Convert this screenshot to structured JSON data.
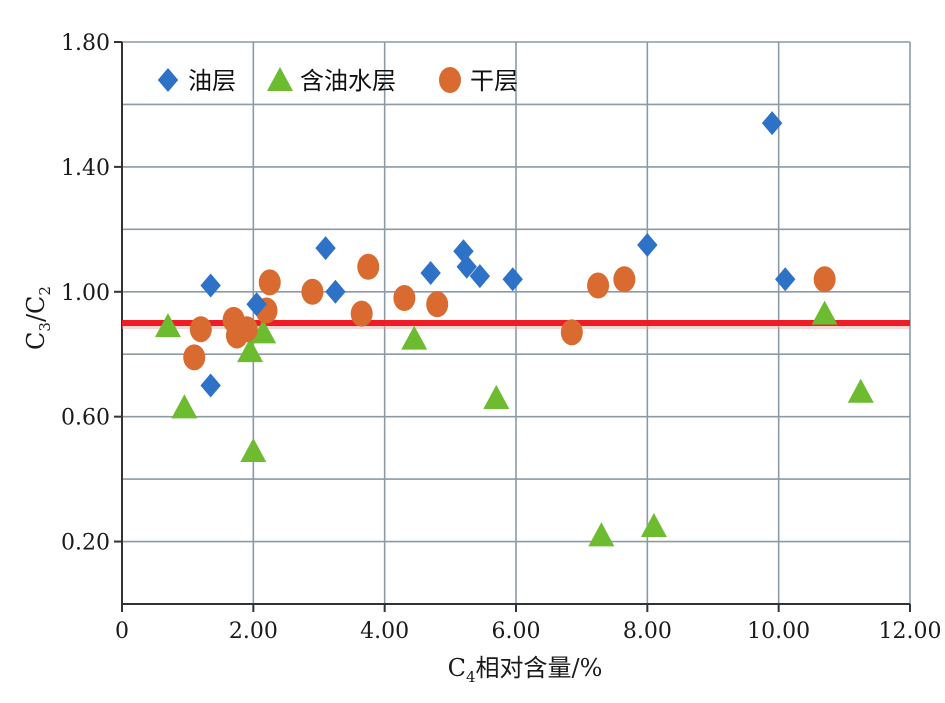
{
  "chart_data": {
    "type": "scatter",
    "xlabel": {
      "prefix": "C",
      "sub": "4",
      "suffix": "相对含量/%"
    },
    "ylabel": {
      "p1": "C",
      "s1": "3",
      "mid": "/C",
      "s2": "2"
    },
    "xlim": [
      0,
      12
    ],
    "ylim": [
      -0.0,
      1.8
    ],
    "x_ticks": [
      {
        "v": 0,
        "label": "0"
      },
      {
        "v": 2,
        "label": "2.00"
      },
      {
        "v": 4,
        "label": "4.00"
      },
      {
        "v": 6,
        "label": "6.00"
      },
      {
        "v": 8,
        "label": "8.00"
      },
      {
        "v": 10,
        "label": "10.00"
      },
      {
        "v": 12,
        "label": "12.00"
      }
    ],
    "y_ticks": [
      {
        "v": 0.2,
        "label": "0.20"
      },
      {
        "v": 0.6,
        "label": "0.60"
      },
      {
        "v": 1.0,
        "label": "1.00"
      },
      {
        "v": 1.4,
        "label": "1.40"
      },
      {
        "v": 1.8,
        "label": "1.80"
      }
    ],
    "grid": true,
    "legend_position": "top-left",
    "reference_line": {
      "y": 0.9,
      "color": "#ee1c24"
    },
    "series": [
      {
        "name": "油层",
        "marker": "diamond",
        "color": "#2e72c8",
        "points": [
          [
            1.35,
            1.02
          ],
          [
            1.35,
            0.7
          ],
          [
            2.05,
            0.96
          ],
          [
            3.1,
            1.14
          ],
          [
            3.25,
            1.0
          ],
          [
            4.7,
            1.06
          ],
          [
            5.2,
            1.13
          ],
          [
            5.25,
            1.08
          ],
          [
            5.45,
            1.05
          ],
          [
            5.95,
            1.04
          ],
          [
            8.0,
            1.15
          ],
          [
            9.9,
            1.54
          ],
          [
            10.1,
            1.04
          ]
        ]
      },
      {
        "name": "含油水层",
        "marker": "triangle",
        "color": "#6dbb2e",
        "points": [
          [
            0.7,
            0.89
          ],
          [
            0.95,
            0.63
          ],
          [
            1.95,
            0.81
          ],
          [
            2.0,
            0.49
          ],
          [
            2.15,
            0.87
          ],
          [
            4.45,
            0.85
          ],
          [
            5.7,
            0.66
          ],
          [
            7.3,
            0.22
          ],
          [
            8.1,
            0.25
          ],
          [
            10.7,
            0.93
          ],
          [
            11.25,
            0.68
          ]
        ]
      },
      {
        "name": "干层",
        "marker": "circle",
        "color": "#d96b30",
        "points": [
          [
            1.1,
            0.79
          ],
          [
            1.2,
            0.88
          ],
          [
            1.7,
            0.91
          ],
          [
            1.75,
            0.86
          ],
          [
            1.9,
            0.88
          ],
          [
            2.2,
            0.94
          ],
          [
            2.25,
            1.03
          ],
          [
            2.9,
            1.0
          ],
          [
            3.65,
            0.93
          ],
          [
            3.75,
            1.08
          ],
          [
            4.3,
            0.98
          ],
          [
            4.8,
            0.96
          ],
          [
            6.85,
            0.87
          ],
          [
            7.25,
            1.02
          ],
          [
            7.65,
            1.04
          ],
          [
            10.7,
            1.04
          ]
        ]
      }
    ]
  }
}
